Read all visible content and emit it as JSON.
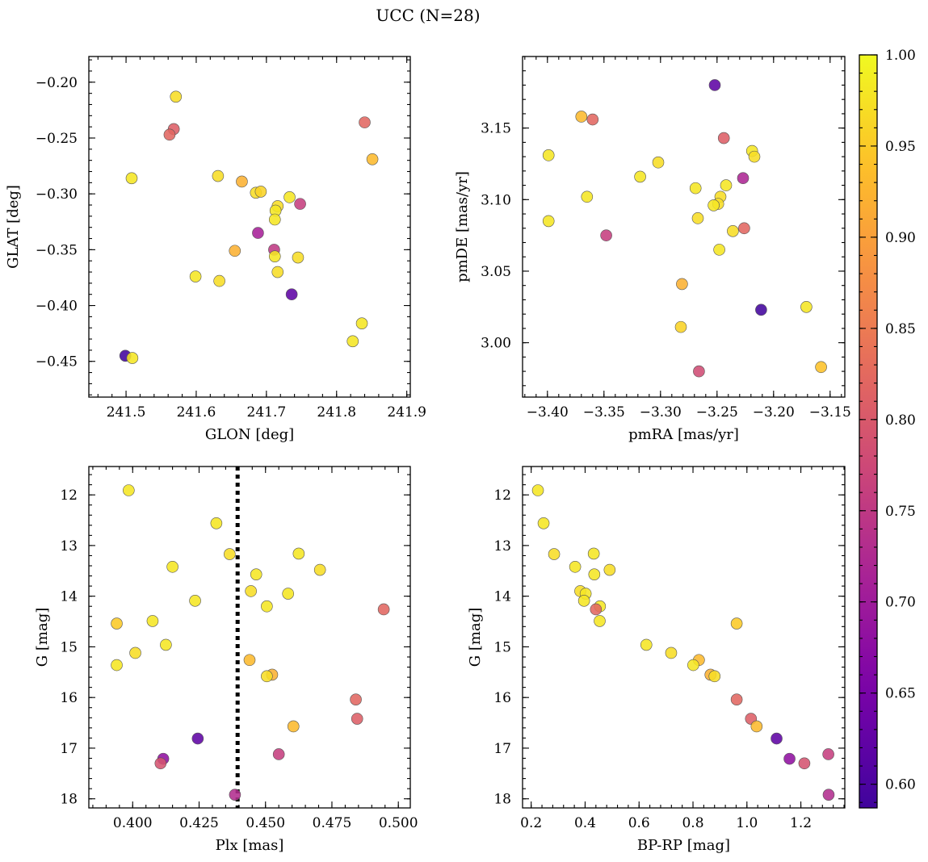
{
  "figure": {
    "title": "UCC (N=28)"
  },
  "colorbar": {
    "colormap": "plasma",
    "vmin": 0.587,
    "vmax": 1.0,
    "ticks": [
      0.6,
      0.65,
      0.7,
      0.75,
      0.8,
      0.85,
      0.9,
      0.95,
      1.0
    ],
    "tick_labels": [
      "0.60",
      "0.65",
      "0.70",
      "0.75",
      "0.80",
      "0.85",
      "0.90",
      "0.95",
      "1.00"
    ]
  },
  "chart_data": [
    {
      "type": "scatter",
      "id": "glon-glat",
      "xlabel": "GLON [deg]",
      "ylabel": "GLAT [deg]",
      "xlim": [
        241.447,
        241.905
      ],
      "ylim": [
        -0.482,
        -0.177
      ],
      "y_inverted": false,
      "xticks": [
        241.5,
        241.6,
        241.7,
        241.8,
        241.9
      ],
      "xtick_labels": [
        "241.5",
        "241.6",
        "241.7",
        "241.8",
        "241.9"
      ],
      "yticks": [
        -0.45,
        -0.4,
        -0.35,
        -0.3,
        -0.25,
        -0.2
      ],
      "ytick_labels": [
        "−0.45",
        "−0.40",
        "−0.35",
        "−0.30",
        "−0.25",
        "−0.20"
      ],
      "points": [
        {
          "x": 241.571,
          "y": -0.213,
          "c": 0.97
        },
        {
          "x": 241.568,
          "y": -0.242,
          "c": 0.81
        },
        {
          "x": 241.562,
          "y": -0.247,
          "c": 0.82
        },
        {
          "x": 241.84,
          "y": -0.236,
          "c": 0.82
        },
        {
          "x": 241.851,
          "y": -0.269,
          "c": 0.93
        },
        {
          "x": 241.508,
          "y": -0.286,
          "c": 0.98
        },
        {
          "x": 241.631,
          "y": -0.284,
          "c": 0.97
        },
        {
          "x": 241.665,
          "y": -0.289,
          "c": 0.92
        },
        {
          "x": 241.685,
          "y": -0.299,
          "c": 0.97
        },
        {
          "x": 241.692,
          "y": -0.298,
          "c": 0.96
        },
        {
          "x": 241.733,
          "y": -0.303,
          "c": 0.98
        },
        {
          "x": 241.716,
          "y": -0.311,
          "c": 0.97
        },
        {
          "x": 241.713,
          "y": -0.315,
          "c": 0.98
        },
        {
          "x": 241.748,
          "y": -0.309,
          "c": 0.76
        },
        {
          "x": 241.712,
          "y": -0.323,
          "c": 0.98
        },
        {
          "x": 241.688,
          "y": -0.335,
          "c": 0.71
        },
        {
          "x": 241.655,
          "y": -0.351,
          "c": 0.92
        },
        {
          "x": 241.711,
          "y": -0.35,
          "c": 0.75
        },
        {
          "x": 241.712,
          "y": -0.356,
          "c": 0.98
        },
        {
          "x": 241.745,
          "y": -0.357,
          "c": 0.97
        },
        {
          "x": 241.716,
          "y": -0.37,
          "c": 0.97
        },
        {
          "x": 241.599,
          "y": -0.374,
          "c": 0.98
        },
        {
          "x": 241.633,
          "y": -0.378,
          "c": 0.97
        },
        {
          "x": 241.736,
          "y": -0.39,
          "c": 0.62
        },
        {
          "x": 241.836,
          "y": -0.416,
          "c": 0.98
        },
        {
          "x": 241.823,
          "y": -0.432,
          "c": 0.98
        },
        {
          "x": 241.499,
          "y": -0.445,
          "c": 0.59
        },
        {
          "x": 241.509,
          "y": -0.447,
          "c": 0.98
        }
      ]
    },
    {
      "type": "scatter",
      "id": "pmra-pmde",
      "xlabel": "pmRA [mas/yr]",
      "ylabel": "pmDE [mas/yr]",
      "xlim": [
        -3.422,
        -3.137
      ],
      "ylim": [
        2.962,
        3.2
      ],
      "y_inverted": false,
      "xticks": [
        -3.4,
        -3.35,
        -3.3,
        -3.25,
        -3.2,
        -3.15
      ],
      "xtick_labels": [
        "−3.40",
        "−3.35",
        "−3.30",
        "−3.25",
        "−3.20",
        "−3.15"
      ],
      "yticks": [
        3.0,
        3.05,
        3.1,
        3.15
      ],
      "ytick_labels": [
        "3.00",
        "3.05",
        "3.10",
        "3.15"
      ],
      "points": [
        {
          "x": -3.252,
          "y": 3.18,
          "c": 0.62
        },
        {
          "x": -3.37,
          "y": 3.158,
          "c": 0.93
        },
        {
          "x": -3.36,
          "y": 3.156,
          "c": 0.82
        },
        {
          "x": -3.244,
          "y": 3.143,
          "c": 0.81
        },
        {
          "x": -3.219,
          "y": 3.134,
          "c": 0.98
        },
        {
          "x": -3.217,
          "y": 3.13,
          "c": 0.97
        },
        {
          "x": -3.399,
          "y": 3.131,
          "c": 0.98
        },
        {
          "x": -3.302,
          "y": 3.126,
          "c": 0.97
        },
        {
          "x": -3.318,
          "y": 3.116,
          "c": 0.98
        },
        {
          "x": -3.227,
          "y": 3.115,
          "c": 0.72
        },
        {
          "x": -3.242,
          "y": 3.11,
          "c": 0.98
        },
        {
          "x": -3.269,
          "y": 3.108,
          "c": 0.98
        },
        {
          "x": -3.365,
          "y": 3.102,
          "c": 0.98
        },
        {
          "x": -3.247,
          "y": 3.102,
          "c": 0.97
        },
        {
          "x": -3.249,
          "y": 3.097,
          "c": 0.97
        },
        {
          "x": -3.253,
          "y": 3.096,
          "c": 0.98
        },
        {
          "x": -3.267,
          "y": 3.087,
          "c": 0.97
        },
        {
          "x": -3.399,
          "y": 3.085,
          "c": 0.98
        },
        {
          "x": -3.226,
          "y": 3.08,
          "c": 0.82
        },
        {
          "x": -3.236,
          "y": 3.078,
          "c": 0.97
        },
        {
          "x": -3.348,
          "y": 3.075,
          "c": 0.76
        },
        {
          "x": -3.248,
          "y": 3.065,
          "c": 0.98
        },
        {
          "x": -3.281,
          "y": 3.041,
          "c": 0.92
        },
        {
          "x": -3.211,
          "y": 3.023,
          "c": 0.59
        },
        {
          "x": -3.171,
          "y": 3.025,
          "c": 0.98
        },
        {
          "x": -3.282,
          "y": 3.011,
          "c": 0.96
        },
        {
          "x": -3.158,
          "y": 2.983,
          "c": 0.94
        },
        {
          "x": -3.266,
          "y": 2.98,
          "c": 0.78
        }
      ]
    },
    {
      "type": "scatter",
      "id": "plx-g",
      "xlabel": "Plx [mas]",
      "ylabel": "G [mag]",
      "xlim": [
        0.3835,
        0.5045
      ],
      "ylim": [
        18.18,
        11.44
      ],
      "y_inverted": true,
      "vline": 0.4395,
      "xticks": [
        0.4,
        0.425,
        0.45,
        0.475,
        0.5
      ],
      "xtick_labels": [
        "0.400",
        "0.425",
        "0.450",
        "0.475",
        "0.500"
      ],
      "yticks": [
        12,
        13,
        14,
        15,
        16,
        17,
        18
      ],
      "ytick_labels": [
        "12",
        "13",
        "14",
        "15",
        "16",
        "17",
        "18"
      ],
      "points": [
        {
          "x": 0.3985,
          "y": 11.91,
          "c": 0.98
        },
        {
          "x": 0.4315,
          "y": 12.56,
          "c": 0.98
        },
        {
          "x": 0.4365,
          "y": 13.17,
          "c": 0.97
        },
        {
          "x": 0.4625,
          "y": 13.16,
          "c": 0.98
        },
        {
          "x": 0.415,
          "y": 13.42,
          "c": 0.98
        },
        {
          "x": 0.4705,
          "y": 13.48,
          "c": 0.97
        },
        {
          "x": 0.4465,
          "y": 13.57,
          "c": 0.98
        },
        {
          "x": 0.4445,
          "y": 13.9,
          "c": 0.97
        },
        {
          "x": 0.4585,
          "y": 13.95,
          "c": 0.98
        },
        {
          "x": 0.4235,
          "y": 14.09,
          "c": 0.98
        },
        {
          "x": 0.4505,
          "y": 14.2,
          "c": 0.98
        },
        {
          "x": 0.4945,
          "y": 14.26,
          "c": 0.82
        },
        {
          "x": 0.4075,
          "y": 14.49,
          "c": 0.98
        },
        {
          "x": 0.394,
          "y": 14.54,
          "c": 0.95
        },
        {
          "x": 0.4125,
          "y": 14.96,
          "c": 0.98
        },
        {
          "x": 0.401,
          "y": 15.12,
          "c": 0.97
        },
        {
          "x": 0.444,
          "y": 15.26,
          "c": 0.93
        },
        {
          "x": 0.394,
          "y": 15.36,
          "c": 0.98
        },
        {
          "x": 0.4525,
          "y": 15.55,
          "c": 0.92
        },
        {
          "x": 0.4505,
          "y": 15.58,
          "c": 0.97
        },
        {
          "x": 0.484,
          "y": 16.04,
          "c": 0.82
        },
        {
          "x": 0.4845,
          "y": 16.42,
          "c": 0.81
        },
        {
          "x": 0.4605,
          "y": 16.57,
          "c": 0.93
        },
        {
          "x": 0.4245,
          "y": 16.81,
          "c": 0.62
        },
        {
          "x": 0.455,
          "y": 17.12,
          "c": 0.76
        },
        {
          "x": 0.4115,
          "y": 17.21,
          "c": 0.68
        },
        {
          "x": 0.4105,
          "y": 17.3,
          "c": 0.79
        },
        {
          "x": 0.4385,
          "y": 17.92,
          "c": 0.73
        }
      ]
    },
    {
      "type": "scatter",
      "id": "bprp-g",
      "xlabel": "BP-RP [mag]",
      "ylabel": "G [mag]",
      "xlim": [
        0.168,
        1.363
      ],
      "ylim": [
        18.18,
        11.44
      ],
      "y_inverted": true,
      "xticks": [
        0.2,
        0.4,
        0.6,
        0.8,
        1.0,
        1.2
      ],
      "xtick_labels": [
        "0.2",
        "0.4",
        "0.6",
        "0.8",
        "1.0",
        "1.2"
      ],
      "yticks": [
        12,
        13,
        14,
        15,
        16,
        17,
        18
      ],
      "ytick_labels": [
        "12",
        "13",
        "14",
        "15",
        "16",
        "17",
        "18"
      ],
      "points": [
        {
          "x": 0.225,
          "y": 11.91,
          "c": 0.98
        },
        {
          "x": 0.246,
          "y": 12.56,
          "c": 0.98
        },
        {
          "x": 0.285,
          "y": 13.17,
          "c": 0.97
        },
        {
          "x": 0.432,
          "y": 13.16,
          "c": 0.98
        },
        {
          "x": 0.363,
          "y": 13.42,
          "c": 0.98
        },
        {
          "x": 0.491,
          "y": 13.48,
          "c": 0.97
        },
        {
          "x": 0.434,
          "y": 13.57,
          "c": 0.98
        },
        {
          "x": 0.382,
          "y": 13.9,
          "c": 0.97
        },
        {
          "x": 0.402,
          "y": 13.95,
          "c": 0.98
        },
        {
          "x": 0.396,
          "y": 14.09,
          "c": 0.98
        },
        {
          "x": 0.455,
          "y": 14.2,
          "c": 0.98
        },
        {
          "x": 0.44,
          "y": 14.26,
          "c": 0.82
        },
        {
          "x": 0.454,
          "y": 14.49,
          "c": 0.98
        },
        {
          "x": 0.962,
          "y": 14.54,
          "c": 0.95
        },
        {
          "x": 0.627,
          "y": 14.96,
          "c": 0.98
        },
        {
          "x": 0.719,
          "y": 15.12,
          "c": 0.97
        },
        {
          "x": 0.822,
          "y": 15.26,
          "c": 0.93
        },
        {
          "x": 0.801,
          "y": 15.36,
          "c": 0.98
        },
        {
          "x": 0.865,
          "y": 15.55,
          "c": 0.92
        },
        {
          "x": 0.88,
          "y": 15.58,
          "c": 0.97
        },
        {
          "x": 0.962,
          "y": 16.04,
          "c": 0.82
        },
        {
          "x": 1.015,
          "y": 16.42,
          "c": 0.81
        },
        {
          "x": 1.036,
          "y": 16.57,
          "c": 0.93
        },
        {
          "x": 1.11,
          "y": 16.81,
          "c": 0.62
        },
        {
          "x": 1.302,
          "y": 17.12,
          "c": 0.76
        },
        {
          "x": 1.158,
          "y": 17.21,
          "c": 0.68
        },
        {
          "x": 1.213,
          "y": 17.3,
          "c": 0.79
        },
        {
          "x": 1.303,
          "y": 17.92,
          "c": 0.73
        }
      ]
    }
  ]
}
